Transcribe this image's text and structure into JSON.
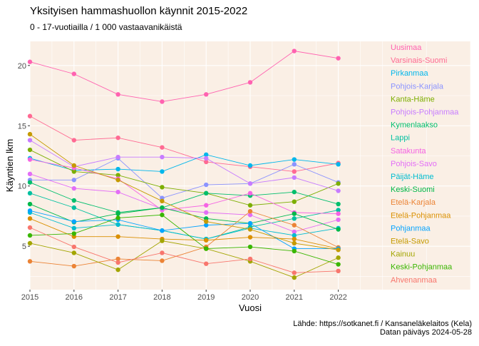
{
  "chart_data": {
    "type": "line",
    "title": "Yksityisen hammashuollon käynnit 2015-2022",
    "subtitle": "0 - 17-vuotiailla / 1 000 vastaavanikäistä",
    "xlabel": "Vuosi",
    "ylabel": "Käyntien lkm",
    "x": [
      2015,
      2016,
      2017,
      2018,
      2019,
      2020,
      2021,
      2022
    ],
    "x_ticks": [
      "2015",
      "2016",
      "2017",
      "2018",
      "2019",
      "2020",
      "2021",
      "2022"
    ],
    "y_ticks": [
      "5",
      "10",
      "15",
      "20"
    ],
    "xlim": [
      2015,
      2025
    ],
    "ylim": [
      1.4,
      22.0
    ],
    "grid": true,
    "legend": "right, direct labels inside panel",
    "panel_background": "#FAEFE5",
    "series": [
      {
        "name": "Uusimaa",
        "color": "#FF62B0",
        "values": [
          20.3,
          19.3,
          17.6,
          17.0,
          17.6,
          18.6,
          21.2,
          20.6
        ]
      },
      {
        "name": "Varsinais-Suomi",
        "color": "#FF6A93",
        "values": [
          15.8,
          13.8,
          14.0,
          13.2,
          12.0,
          11.6,
          11.2,
          11.9
        ]
      },
      {
        "name": "Pirkanmaa",
        "color": "#00B6EB",
        "values": [
          12.3,
          11.3,
          11.4,
          11.2,
          12.6,
          11.7,
          12.2,
          11.8
        ]
      },
      {
        "name": "Pohjois-Karjala",
        "color": "#8B93FF",
        "values": [
          10.5,
          10.5,
          12.3,
          9.0,
          10.1,
          10.2,
          11.8,
          10.3
        ]
      },
      {
        "name": "Kanta-Häme",
        "color": "#7CAE00",
        "values": [
          13.0,
          11.2,
          10.9,
          9.9,
          9.4,
          8.4,
          8.7,
          10.2
        ]
      },
      {
        "name": "Pohjois-Pohjanmaa",
        "color": "#C77CFF",
        "values": [
          13.8,
          11.6,
          12.4,
          12.4,
          12.3,
          10.2,
          10.7,
          9.6
        ]
      },
      {
        "name": "Kymenlaakso",
        "color": "#00BE6C",
        "values": [
          10.3,
          8.8,
          7.8,
          8.2,
          9.4,
          9.2,
          9.5,
          8.5
        ]
      },
      {
        "name": "Lappi",
        "color": "#00C0A0",
        "values": [
          9.4,
          8.2,
          6.8,
          6.3,
          5.6,
          6.6,
          7.3,
          8.0
        ]
      },
      {
        "name": "Satakunta",
        "color": "#F564E3",
        "values": [
          12.2,
          11.5,
          10.6,
          8.0,
          8.4,
          9.4,
          7.8,
          7.7
        ]
      },
      {
        "name": "Pohjois-Savo",
        "color": "#E36EF6",
        "values": [
          11.0,
          9.8,
          9.5,
          8.1,
          7.8,
          7.6,
          6.2,
          7.2
        ]
      },
      {
        "name": "Päijät-Häme",
        "color": "#00BCD0",
        "values": [
          7.8,
          6.5,
          6.8,
          6.3,
          5.6,
          6.5,
          5.9,
          6.5
        ]
      },
      {
        "name": "Keski-Suomi",
        "color": "#00B84A",
        "values": [
          8.5,
          7.0,
          7.7,
          8.2,
          7.3,
          6.9,
          7.7,
          6.4
        ]
      },
      {
        "name": "Etelä-Karjala",
        "color": "#EB8335",
        "values": [
          3.75,
          3.35,
          3.95,
          3.8,
          4.95,
          7.9,
          6.75,
          4.9
        ]
      },
      {
        "name": "Etelä-Pohjanmaa",
        "color": "#DA8F00",
        "values": [
          7.3,
          5.8,
          5.8,
          5.6,
          5.5,
          5.75,
          5.6,
          4.8
        ]
      },
      {
        "name": "Pohjanmaa",
        "color": "#06A4FF",
        "values": [
          7.95,
          7.05,
          7.2,
          6.3,
          6.75,
          6.9,
          4.8,
          4.8
        ]
      },
      {
        "name": "Etelä-Savo",
        "color": "#C59A00",
        "values": [
          14.3,
          11.7,
          10.5,
          8.75,
          7.05,
          6.4,
          5.25,
          4.7
        ]
      },
      {
        "name": "Kainuu",
        "color": "#A3A500",
        "values": [
          5.25,
          4.45,
          3.05,
          5.45,
          4.8,
          3.75,
          2.4,
          4.05
        ]
      },
      {
        "name": "Keski-Pohjanmaa",
        "color": "#39B600",
        "values": [
          5.9,
          6.05,
          7.35,
          7.6,
          4.8,
          4.95,
          4.6,
          3.5
        ]
      },
      {
        "name": "Ahvenanmaa",
        "color": "#F8766D",
        "values": [
          6.55,
          4.95,
          3.65,
          4.45,
          3.55,
          3.95,
          2.8,
          2.95
        ]
      }
    ],
    "caption": [
      "Lähde: https://sotkanet.fi / Kansaneläkelaitos (Kela)",
      "Datan päiväys 2024-05-28"
    ]
  }
}
